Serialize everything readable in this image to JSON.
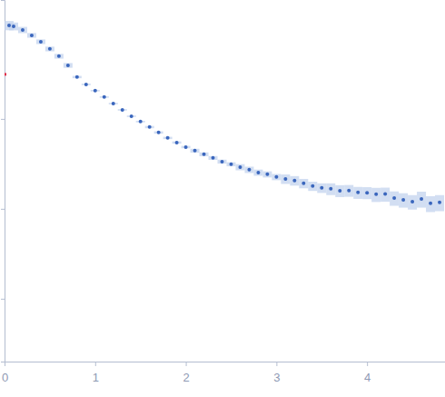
{
  "chart_data": {
    "type": "scatter",
    "log": "y",
    "tick_labels": "x",
    "grid": false,
    "xlim": [
      0,
      4.86
    ],
    "xticks": [
      0,
      1,
      2,
      3,
      4
    ],
    "ylim": [
      0.002,
      21
    ],
    "yticks": [
      0.01,
      0.1,
      1
    ],
    "series": [
      {
        "color": "#3a66bd",
        "marker": "circle",
        "x": [
          0.05,
          0.1,
          0.2,
          0.3,
          0.4,
          0.5,
          0.6,
          0.7,
          0.8,
          0.9,
          1.0,
          1.1,
          1.2,
          1.3,
          1.4,
          1.5,
          1.6,
          1.7,
          1.8,
          1.9,
          2.0,
          2.1,
          2.2,
          2.3,
          2.4,
          2.5,
          2.6,
          2.7,
          2.8,
          2.9,
          3.0,
          3.1,
          3.2,
          3.3,
          3.4,
          3.5,
          3.6,
          3.7,
          3.8,
          3.9,
          4.0,
          4.1,
          4.2,
          4.3,
          4.4,
          4.5,
          4.6,
          4.7,
          4.8
        ],
        "values": [
          10.97,
          10.72,
          9.77,
          8.5,
          7.22,
          6.0,
          4.98,
          3.94,
          2.92,
          2.42,
          2.06,
          1.75,
          1.48,
          1.26,
          1.07,
          0.933,
          0.811,
          0.706,
          0.614,
          0.546,
          0.486,
          0.443,
          0.404,
          0.368,
          0.335,
          0.313,
          0.291,
          0.272,
          0.253,
          0.242,
          0.226,
          0.215,
          0.206,
          0.192,
          0.179,
          0.171,
          0.167,
          0.159,
          0.16,
          0.152,
          0.151,
          0.145,
          0.146,
          0.132,
          0.126,
          0.12,
          0.129,
          0.115,
          0.118
        ],
        "errors": [
          1.3,
          1.07,
          0.78,
          0.51,
          0.43,
          0.36,
          0.3,
          0.24,
          0.088,
          0.048,
          0.041,
          0.035,
          0.03,
          0.025,
          0.021,
          0.019,
          0.024,
          0.021,
          0.018,
          0.016,
          0.015,
          0.022,
          0.02,
          0.018,
          0.017,
          0.016,
          0.023,
          0.022,
          0.02,
          0.019,
          0.018,
          0.026,
          0.025,
          0.023,
          0.021,
          0.021,
          0.025,
          0.024,
          0.024,
          0.023,
          0.023,
          0.026,
          0.026,
          0.024,
          0.023,
          0.022,
          0.026,
          0.023,
          0.024
        ]
      },
      {
        "color": "#e0304a",
        "marker": "square",
        "x": [
          0
        ],
        "values": [
          3.13
        ]
      }
    ]
  }
}
